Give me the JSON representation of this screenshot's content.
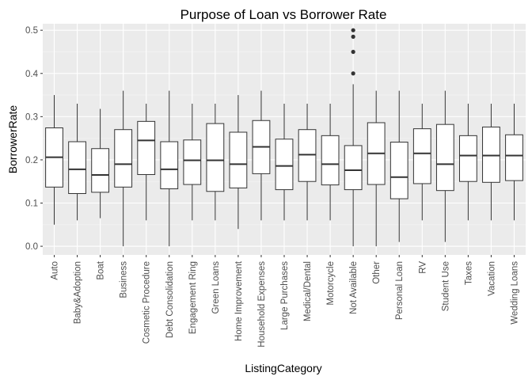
{
  "chart_data": {
    "type": "boxplot",
    "title": "Purpose of Loan vs Borrower Rate",
    "xlabel": "ListingCategory",
    "ylabel": "BorrowerRate",
    "ylim": [
      -0.02,
      0.515
    ],
    "yticks": [
      "0.0",
      "0.1",
      "0.2",
      "0.3",
      "0.4",
      "0.5"
    ],
    "grid": true,
    "colors": {
      "panel": "#ebebeb",
      "grid_major": "#ffffff",
      "grid_minor": "#f5f5f5",
      "box_fill": "#ffffff",
      "box_stroke": "#333333",
      "outlier": "#333333"
    },
    "categories": [
      "Auto",
      "Baby&Adoption",
      "Boat",
      "Business",
      "Cosmetic Procedure",
      "Debt Consolidation",
      "Engagement Ring",
      "Green Loans",
      "Home Improvement",
      "Household Expenses",
      "Large Purchases",
      "Medical/Dental",
      "Motorcycle",
      "Not Available",
      "Other",
      "Personal Loan",
      "RV",
      "Student Use",
      "Taxes",
      "Vacation",
      "Wedding Loans"
    ],
    "boxes": [
      {
        "min": 0.05,
        "q1": 0.137,
        "median": 0.206,
        "q3": 0.274,
        "max": 0.35,
        "outliers": []
      },
      {
        "min": 0.06,
        "q1": 0.122,
        "median": 0.178,
        "q3": 0.242,
        "max": 0.33,
        "outliers": []
      },
      {
        "min": 0.065,
        "q1": 0.125,
        "median": 0.165,
        "q3": 0.226,
        "max": 0.318,
        "outliers": []
      },
      {
        "min": 0.0,
        "q1": 0.137,
        "median": 0.19,
        "q3": 0.27,
        "max": 0.36,
        "outliers": []
      },
      {
        "min": 0.06,
        "q1": 0.166,
        "median": 0.245,
        "q3": 0.289,
        "max": 0.33,
        "outliers": []
      },
      {
        "min": 0.0,
        "q1": 0.133,
        "median": 0.178,
        "q3": 0.242,
        "max": 0.36,
        "outliers": []
      },
      {
        "min": 0.06,
        "q1": 0.143,
        "median": 0.199,
        "q3": 0.246,
        "max": 0.33,
        "outliers": []
      },
      {
        "min": 0.06,
        "q1": 0.127,
        "median": 0.199,
        "q3": 0.284,
        "max": 0.33,
        "outliers": []
      },
      {
        "min": 0.04,
        "q1": 0.135,
        "median": 0.19,
        "q3": 0.264,
        "max": 0.35,
        "outliers": []
      },
      {
        "min": 0.06,
        "q1": 0.168,
        "median": 0.23,
        "q3": 0.291,
        "max": 0.36,
        "outliers": []
      },
      {
        "min": 0.06,
        "q1": 0.131,
        "median": 0.186,
        "q3": 0.248,
        "max": 0.33,
        "outliers": []
      },
      {
        "min": 0.06,
        "q1": 0.15,
        "median": 0.212,
        "q3": 0.27,
        "max": 0.33,
        "outliers": []
      },
      {
        "min": 0.06,
        "q1": 0.142,
        "median": 0.19,
        "q3": 0.256,
        "max": 0.33,
        "outliers": []
      },
      {
        "min": 0.0,
        "q1": 0.131,
        "median": 0.176,
        "q3": 0.233,
        "max": 0.375,
        "outliers": [
          0.4,
          0.45,
          0.485,
          0.5
        ]
      },
      {
        "min": 0.0,
        "q1": 0.143,
        "median": 0.215,
        "q3": 0.286,
        "max": 0.36,
        "outliers": []
      },
      {
        "min": 0.01,
        "q1": 0.11,
        "median": 0.16,
        "q3": 0.241,
        "max": 0.36,
        "outliers": []
      },
      {
        "min": 0.06,
        "q1": 0.145,
        "median": 0.215,
        "q3": 0.272,
        "max": 0.33,
        "outliers": []
      },
      {
        "min": 0.01,
        "q1": 0.129,
        "median": 0.19,
        "q3": 0.282,
        "max": 0.36,
        "outliers": []
      },
      {
        "min": 0.06,
        "q1": 0.15,
        "median": 0.21,
        "q3": 0.256,
        "max": 0.33,
        "outliers": []
      },
      {
        "min": 0.06,
        "q1": 0.148,
        "median": 0.21,
        "q3": 0.276,
        "max": 0.33,
        "outliers": []
      },
      {
        "min": 0.06,
        "q1": 0.152,
        "median": 0.21,
        "q3": 0.258,
        "max": 0.33,
        "outliers": []
      }
    ]
  }
}
